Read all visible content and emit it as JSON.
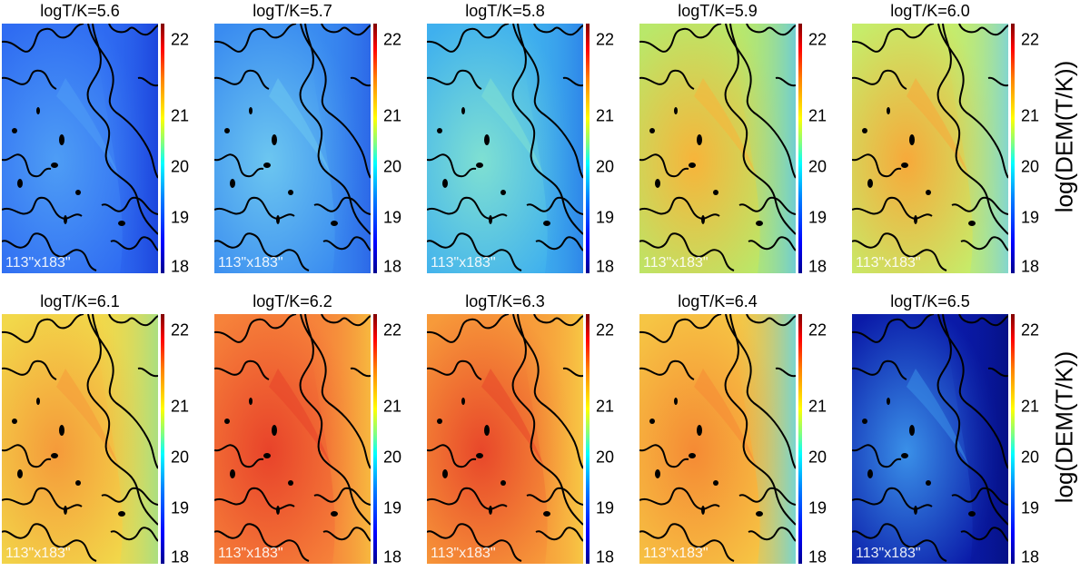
{
  "axis_label": "log(DEM(T/K))",
  "colorbar": {
    "ticks": [
      "22",
      "21",
      "20",
      "19",
      "18"
    ],
    "colors": [
      "#00008f",
      "#0000ff",
      "#0080ff",
      "#00ffff",
      "#80ff80",
      "#ffff00",
      "#ff8000",
      "#ff0000",
      "#800000"
    ]
  },
  "panels": [
    {
      "title": "logT/K=5.6",
      "fov": "113\"x183\"",
      "base_color": "#2f6cf2",
      "dark_color": "#1a3fd9",
      "hot_color": "#4e9df5"
    },
    {
      "title": "logT/K=5.7",
      "fov": "113\"x183\"",
      "base_color": "#3a8cf0",
      "dark_color": "#2a62e6",
      "hot_color": "#6cc6f0"
    },
    {
      "title": "logT/K=5.8",
      "fov": "113\"x183\"",
      "base_color": "#3fb0ee",
      "dark_color": "#2b7fe8",
      "hot_color": "#7fe0d2"
    },
    {
      "title": "logT/K=5.9",
      "fov": "113\"x183\"",
      "base_color": "#b9e86a",
      "dark_color": "#63c9e4",
      "hot_color": "#f7b43a"
    },
    {
      "title": "logT/K=6.0",
      "fov": "113\"x183\"",
      "base_color": "#c6ec6a",
      "dark_color": "#78d2e0",
      "hot_color": "#f7a93a"
    },
    {
      "title": "logT/K=6.1",
      "fov": "113\"x183\"",
      "base_color": "#f2d84a",
      "dark_color": "#9ee08a",
      "hot_color": "#f59a3a"
    },
    {
      "title": "logT/K=6.2",
      "fov": "113\"x183\"",
      "base_color": "#f6823a",
      "dark_color": "#f7c240",
      "hot_color": "#e8432a"
    },
    {
      "title": "logT/K=6.3",
      "fov": "113\"x183\"",
      "base_color": "#f79a3a",
      "dark_color": "#f7d046",
      "hot_color": "#e8472a"
    },
    {
      "title": "logT/K=6.4",
      "fov": "113\"x183\"",
      "base_color": "#f6c544",
      "dark_color": "#62d8e8",
      "hot_color": "#f58a34"
    },
    {
      "title": "logT/K=6.5",
      "fov": "113\"x183\"",
      "base_color": "#0a1aa8",
      "dark_color": "#051080",
      "hot_color": "#3a90e8"
    }
  ]
}
